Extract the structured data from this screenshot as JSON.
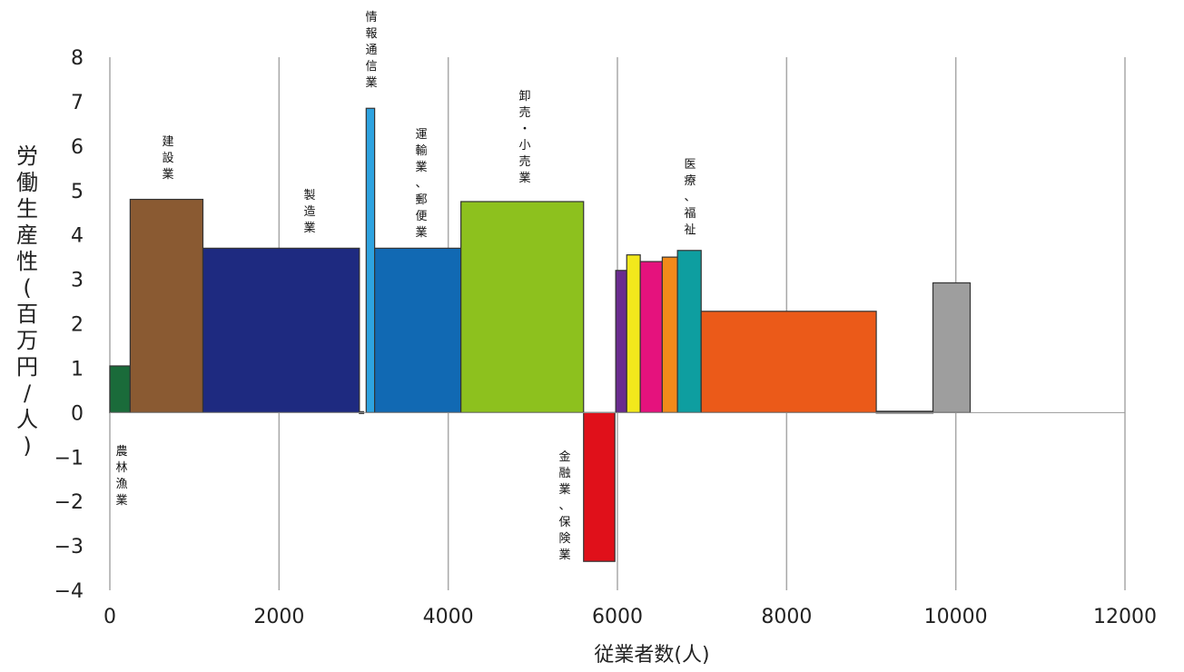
{
  "chart_data": {
    "type": "bar",
    "subtype": "variable-width (marimekko-style) bar chart",
    "xlabel": "従業者数(人)",
    "ylabel": "労働生産性(百万円/人)",
    "xlim": [
      0,
      12000
    ],
    "ylim": [
      -4,
      8
    ],
    "x_ticks": [
      "0",
      "2000",
      "4000",
      "6000",
      "8000",
      "10000",
      "12000"
    ],
    "y_ticks": [
      "8",
      "7",
      "6",
      "5",
      "4",
      "3",
      "2",
      "1",
      "0",
      "−1",
      "−2",
      "−3",
      "−4"
    ],
    "grid": "vertical",
    "bars": [
      {
        "label": "農林漁業",
        "x0": 0,
        "x1": 240,
        "value": 1.05,
        "color": "#1a6b3a"
      },
      {
        "label": "建設業",
        "x0": 240,
        "x1": 1100,
        "value": 4.8,
        "color": "#8a5a32"
      },
      {
        "label": "製造業",
        "x0": 1100,
        "x1": 2950,
        "value": 3.7,
        "color": "#1e2a80"
      },
      {
        "label": "",
        "x0": 2950,
        "x1": 3000,
        "value": 0.02,
        "color": "#222222"
      },
      {
        "label": "情報通信業",
        "x0": 3030,
        "x1": 3130,
        "value": 6.85,
        "color": "#2ea3e0"
      },
      {
        "label": "運輸業、郵便業",
        "x0": 3130,
        "x1": 4150,
        "value": 3.7,
        "color": "#1169b3"
      },
      {
        "label": "卸売・小売業",
        "x0": 4150,
        "x1": 5600,
        "value": 4.75,
        "color": "#8dc11e"
      },
      {
        "label": "金融業、保険業",
        "x0": 5600,
        "x1": 5970,
        "value": -3.35,
        "color": "#e0101a"
      },
      {
        "label": "",
        "x0": 5980,
        "x1": 6110,
        "value": 3.2,
        "color": "#6a2c8f"
      },
      {
        "label": "",
        "x0": 6110,
        "x1": 6270,
        "value": 3.55,
        "color": "#f2e81c"
      },
      {
        "label": "",
        "x0": 6270,
        "x1": 6530,
        "value": 3.4,
        "color": "#e5127d"
      },
      {
        "label": "",
        "x0": 6530,
        "x1": 6710,
        "value": 3.5,
        "color": "#f28a1a"
      },
      {
        "label": "医療、福祉",
        "x0": 6710,
        "x1": 6990,
        "value": 3.65,
        "color": "#0e9ea0"
      },
      {
        "label": "",
        "x0": 6990,
        "x1": 9060,
        "value": 2.28,
        "color": "#eb5a19"
      },
      {
        "label": "",
        "x0": 9060,
        "x1": 9730,
        "value": 0.03,
        "color": "#333333"
      },
      {
        "label": "",
        "x0": 9730,
        "x1": 10170,
        "value": 2.92,
        "color": "#9e9e9e"
      }
    ]
  }
}
